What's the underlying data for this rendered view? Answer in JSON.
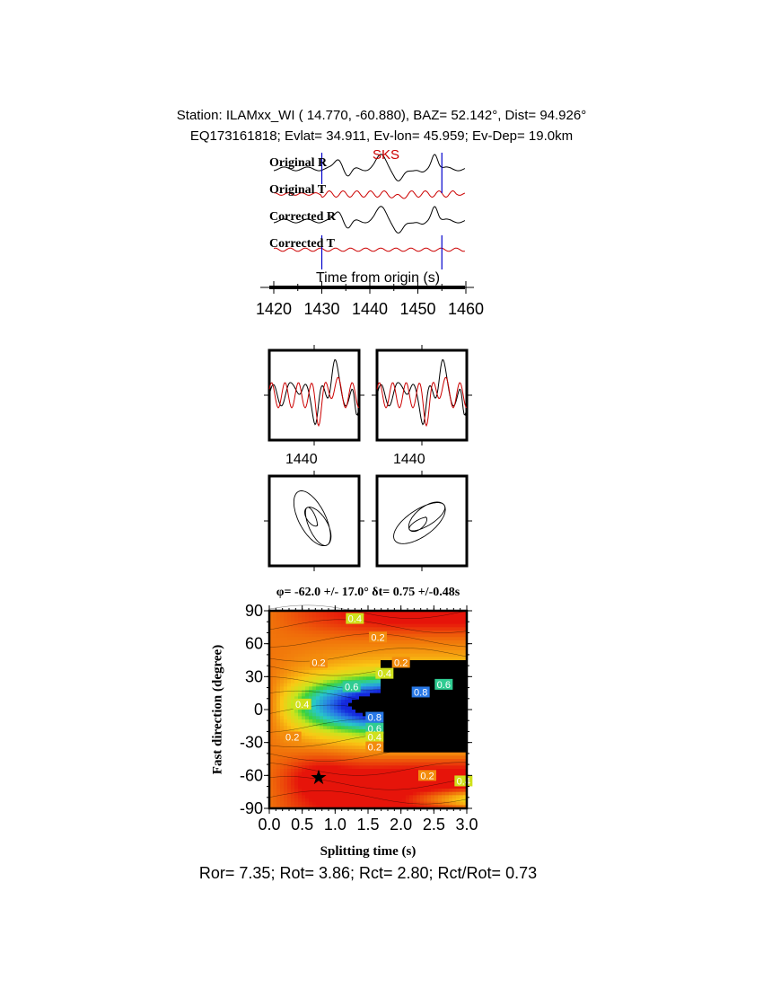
{
  "header": {
    "line1": "Station: ILAMxx_WI (  14.770,  -60.880), BAZ=   52.142°, Dist=   94.926°",
    "line2": "EQ173161818; Evlat=  34.911, Ev-lon=  45.959; Ev-Dep= 19.0km"
  },
  "traces": {
    "phase_label": "SKS",
    "labels": [
      "Original R",
      "Original T",
      "Corrected R",
      "Corrected T"
    ],
    "xlabel": "Time from origin (s)",
    "xticks": [
      "1420",
      "1430",
      "1440",
      "1450",
      "1460"
    ],
    "xlim": [
      1418,
      1461
    ],
    "window": [
      1430,
      1455
    ],
    "colors": {
      "radial": "#000000",
      "transverse": "#cc0000",
      "window": "#0000cc"
    }
  },
  "waveform_panels": {
    "tick_labels": [
      "1440",
      "1440"
    ]
  },
  "chart_data": {
    "type": "heatmap",
    "title": "φ= -62.0 +/- 17.0° δt= 0.75 +/-0.48s",
    "xlabel": "Splitting time (s)",
    "ylabel": "Fast direction (degree)",
    "xlim": [
      0,
      3
    ],
    "ylim": [
      -90,
      90
    ],
    "xticks": [
      "0.0",
      "0.5",
      "1.0",
      "1.5",
      "2.0",
      "2.5",
      "3.0"
    ],
    "yticks": [
      "90",
      "60",
      "30",
      "0",
      "-30",
      "-60",
      "-90"
    ],
    "best_fit": {
      "dt": 0.75,
      "phi": -62.0
    },
    "contour_labels": [
      {
        "text": "0.4",
        "dt": 1.3,
        "phi": 83
      },
      {
        "text": "0.2",
        "dt": 1.65,
        "phi": 66
      },
      {
        "text": "0.2",
        "dt": 0.75,
        "phi": 43
      },
      {
        "text": "0.2",
        "dt": 2.0,
        "phi": 43
      },
      {
        "text": "0.4",
        "dt": 1.75,
        "phi": 33
      },
      {
        "text": "0.6",
        "dt": 1.25,
        "phi": 21
      },
      {
        "text": "0.8",
        "dt": 2.3,
        "phi": 16
      },
      {
        "text": "0.6",
        "dt": 2.65,
        "phi": 23
      },
      {
        "text": "0.4",
        "dt": 0.5,
        "phi": 5
      },
      {
        "text": "0.8",
        "dt": 1.6,
        "phi": -7
      },
      {
        "text": "0.6",
        "dt": 1.6,
        "phi": -17
      },
      {
        "text": "0.4",
        "dt": 1.6,
        "phi": -25
      },
      {
        "text": "0.2",
        "dt": 1.6,
        "phi": -34
      },
      {
        "text": "0.2",
        "dt": 0.35,
        "phi": -25
      },
      {
        "text": "0.2",
        "dt": 2.4,
        "phi": -60
      },
      {
        "text": "0.4",
        "dt": 2.95,
        "phi": -65
      }
    ]
  },
  "footer": {
    "text": "Ror= 7.35; Rot= 3.86; Rct= 2.80; Rct/Rot= 0.73"
  }
}
